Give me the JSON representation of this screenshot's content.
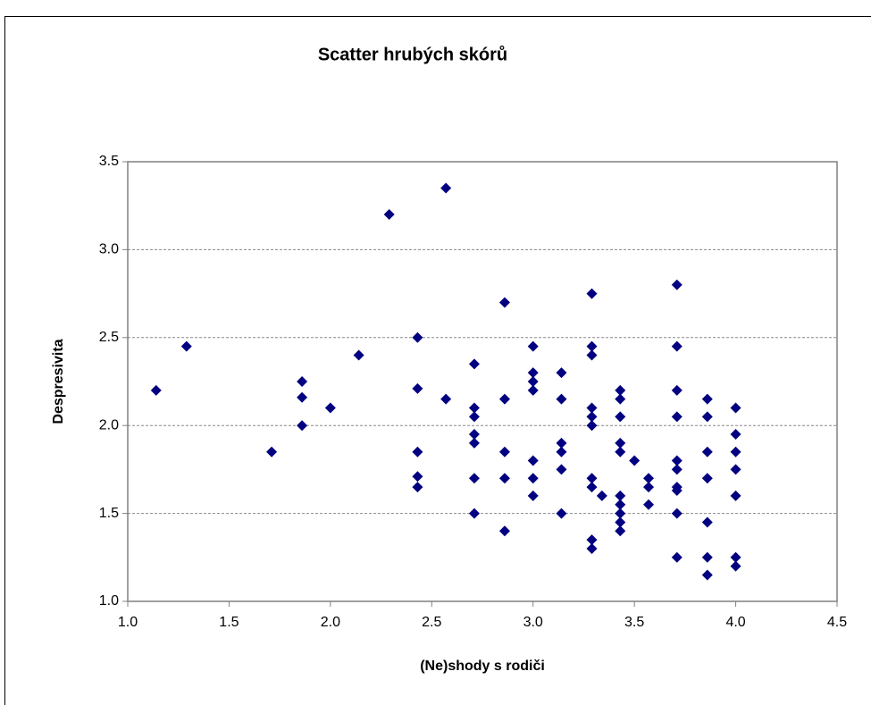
{
  "chart_data": {
    "type": "scatter",
    "title": "Scatter hrubých skórů",
    "xlabel": "(Ne)shody s rodiči",
    "ylabel": "Despresivita",
    "color": "#000080",
    "x": [
      1.14,
      1.29,
      1.71,
      1.86,
      1.86,
      1.86,
      2.0,
      2.14,
      2.29,
      2.43,
      2.43,
      2.43,
      2.43,
      2.43,
      2.57,
      2.57,
      2.71,
      2.71,
      2.71,
      2.71,
      2.71,
      2.71,
      2.71,
      2.86,
      2.86,
      2.86,
      2.86,
      2.86,
      3.0,
      3.0,
      3.0,
      3.0,
      3.0,
      3.0,
      3.0,
      3.14,
      3.14,
      3.14,
      3.14,
      3.14,
      3.14,
      3.29,
      3.29,
      3.29,
      3.29,
      3.29,
      3.29,
      3.29,
      3.29,
      3.29,
      3.29,
      3.34,
      3.43,
      3.43,
      3.43,
      3.43,
      3.43,
      3.43,
      3.43,
      3.43,
      3.43,
      3.43,
      3.5,
      3.57,
      3.57,
      3.57,
      3.71,
      3.71,
      3.71,
      3.71,
      3.71,
      3.71,
      3.71,
      3.71,
      3.71,
      3.71,
      3.86,
      3.86,
      3.86,
      3.86,
      3.86,
      3.86,
      3.86,
      4.0,
      4.0,
      4.0,
      4.0,
      4.0,
      4.0,
      4.0
    ],
    "values": [
      2.2,
      2.45,
      1.85,
      2.25,
      2.16,
      2.0,
      2.1,
      2.4,
      3.2,
      2.5,
      2.21,
      1.85,
      1.71,
      1.65,
      3.35,
      2.15,
      2.35,
      2.1,
      2.05,
      1.95,
      1.9,
      1.7,
      1.5,
      2.7,
      2.15,
      1.85,
      1.7,
      1.4,
      2.45,
      2.3,
      2.25,
      2.2,
      1.8,
      1.7,
      1.6,
      2.3,
      2.15,
      1.9,
      1.85,
      1.75,
      1.5,
      2.75,
      2.45,
      2.4,
      2.1,
      2.05,
      2.0,
      1.7,
      1.65,
      1.35,
      1.3,
      1.6,
      2.2,
      2.15,
      2.05,
      1.9,
      1.85,
      1.6,
      1.55,
      1.5,
      1.45,
      1.4,
      1.8,
      1.7,
      1.65,
      1.55,
      2.8,
      2.45,
      2.2,
      2.05,
      1.8,
      1.75,
      1.65,
      1.63,
      1.5,
      1.25,
      2.15,
      2.05,
      1.85,
      1.7,
      1.45,
      1.25,
      1.15,
      2.1,
      1.95,
      1.85,
      1.75,
      1.6,
      1.25,
      1.2
    ],
    "xlim": [
      1.0,
      4.5
    ],
    "xticks": [
      {
        "value": 1.0,
        "label": "1.0"
      },
      1.5,
      {
        "value": 2.0,
        "label": "2.0"
      },
      2.5,
      {
        "value": 3.0,
        "label": "3.0"
      },
      3.5,
      {
        "value": 4.0,
        "label": "4.0"
      },
      4.5
    ],
    "ylim": [
      1.0,
      3.5
    ],
    "yticks": [
      {
        "value": 1.0,
        "label": "1.0"
      },
      1.5,
      {
        "value": 2.0,
        "label": "2.0"
      },
      2.5,
      {
        "value": 3.0,
        "label": "3.0"
      },
      3.5
    ],
    "grid": true
  }
}
